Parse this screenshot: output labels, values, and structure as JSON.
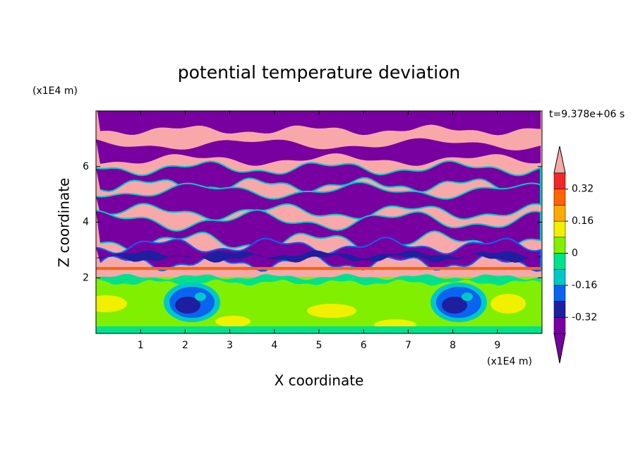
{
  "chart_data": {
    "type": "contour",
    "title": "potential temperature deviation",
    "x_label": "X coordinate",
    "y_label": "Z coordinate",
    "x_unit": "(x1E4 m)",
    "y_unit": "(x1E4 m)",
    "time_label": "t=9.378e+06 s",
    "xlim": [
      0,
      10
    ],
    "ylim": [
      0,
      8
    ],
    "xticks": [
      1,
      2,
      3,
      4,
      5,
      6,
      7,
      8,
      9
    ],
    "yticks": [
      2,
      4,
      6
    ],
    "colorbar": {
      "levels": [
        -0.4,
        -0.32,
        -0.24,
        -0.16,
        -0.08,
        0,
        0.08,
        0.16,
        0.24,
        0.32,
        0.4
      ],
      "ticks": [
        -0.32,
        -0.16,
        0,
        0.16,
        0.32
      ],
      "colors": [
        "#7800a0",
        "#7800a0",
        "#1e1ea0",
        "#0a64f0",
        "#00c8c8",
        "#00e18c",
        "#80f000",
        "#f0f000",
        "#ffaa00",
        "#ff6400",
        "#f02828",
        "#f8a8a8"
      ]
    }
  }
}
